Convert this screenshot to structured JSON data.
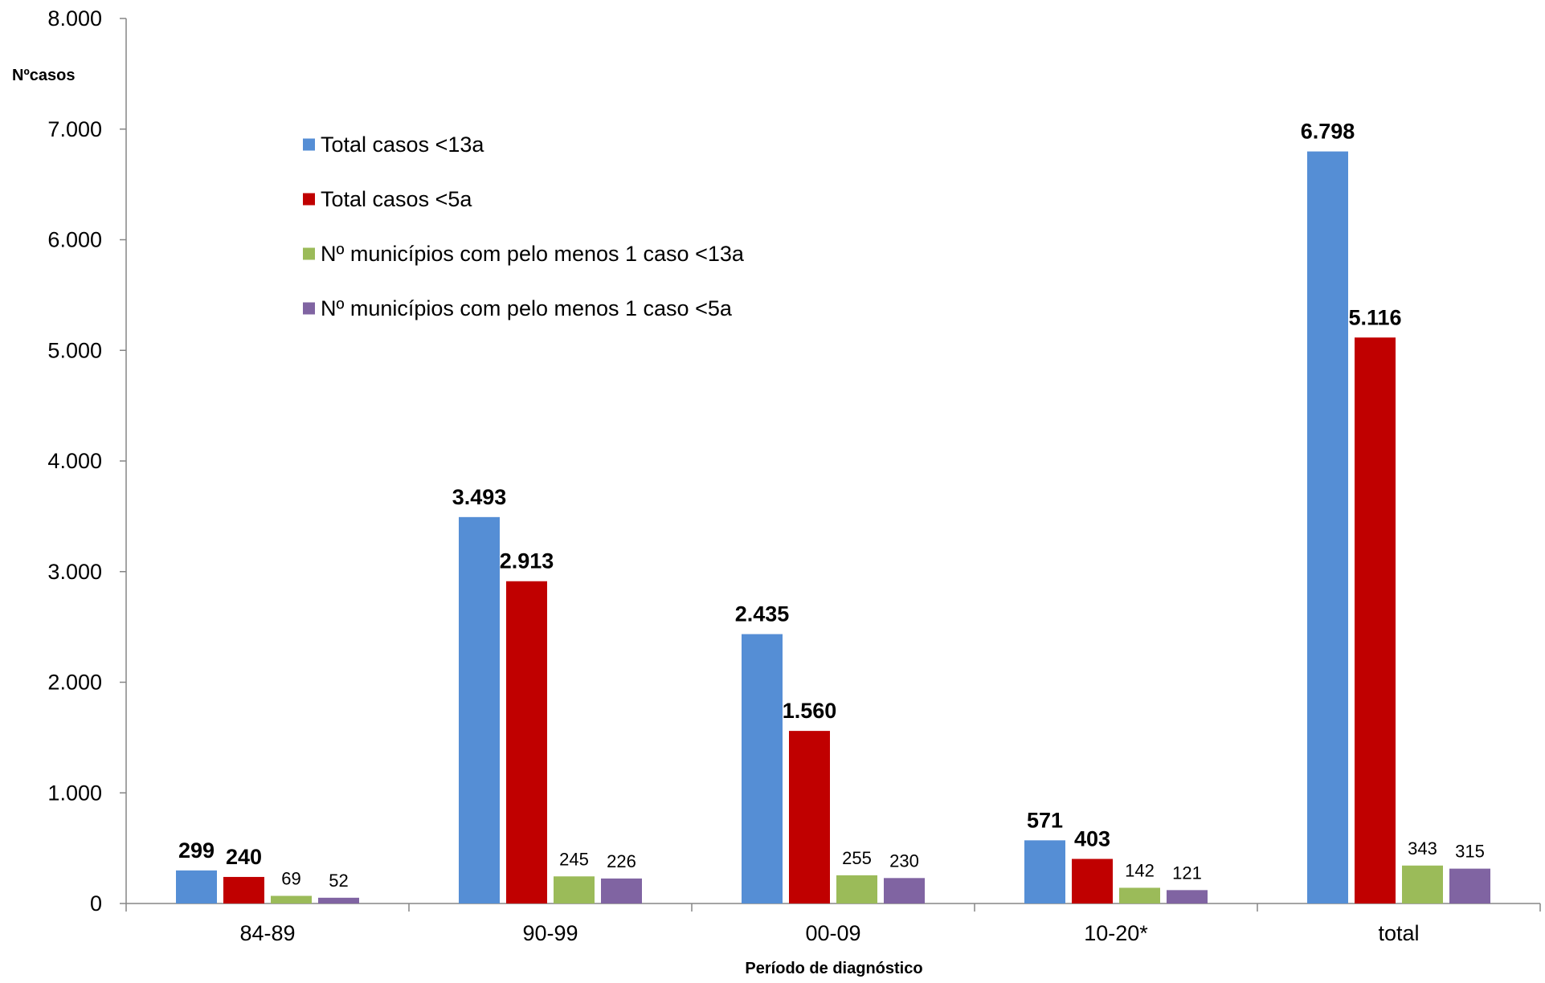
{
  "chart_data": {
    "type": "bar",
    "title": "",
    "ylabel": "Nºcasos",
    "xlabel": "Período de diagnóstico",
    "ylim": [
      0,
      8000
    ],
    "yticks": [
      "0",
      "1.000",
      "2.000",
      "3.000",
      "4.000",
      "5.000",
      "6.000",
      "7.000",
      "8.000"
    ],
    "categories": [
      "84-89",
      "90-99",
      "00-09",
      "10-20*",
      "total"
    ],
    "legend_position": "top-left",
    "grid": false,
    "series": [
      {
        "name": "Total casos <13a",
        "color": "#558ED5",
        "bold_labels": true,
        "values": [
          299,
          3493,
          2435,
          571,
          6798
        ],
        "labels": [
          "299",
          "3.493",
          "2.435",
          "571",
          "6.798"
        ]
      },
      {
        "name": "Total casos <5a",
        "color": "#C00000",
        "bold_labels": true,
        "values": [
          240,
          2913,
          1560,
          403,
          5116
        ],
        "labels": [
          "240",
          "2.913",
          "1.560",
          "403",
          "5.116"
        ]
      },
      {
        "name": "Nº municípios com pelo menos 1 caso <13a",
        "color": "#9BBB59",
        "bold_labels": false,
        "values": [
          69,
          245,
          255,
          142,
          343
        ],
        "labels": [
          "69",
          "245",
          "255",
          "142",
          "343"
        ]
      },
      {
        "name": "Nº municípios com pelo menos 1 caso <5a",
        "color": "#8064A2",
        "bold_labels": false,
        "values": [
          52,
          226,
          230,
          121,
          315
        ],
        "labels": [
          "52",
          "226",
          "230",
          "121",
          "315"
        ]
      }
    ]
  }
}
